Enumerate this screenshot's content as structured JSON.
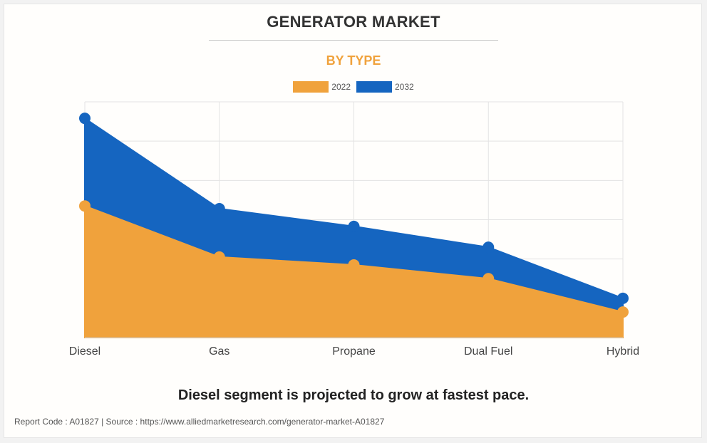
{
  "header": {
    "title": "GENERATOR MARKET",
    "subtitle": "BY TYPE"
  },
  "footer": {
    "headline": "Diesel segment is projected to grow at fastest pace.",
    "source": "Report Code : A01827  |  Source : https://www.alliedmarketresearch.com/generator-market-A01827"
  },
  "colors": {
    "2022": "#f0a23c",
    "2032": "#1565c0"
  },
  "chart_data": {
    "type": "area",
    "title": "GENERATOR MARKET",
    "subtitle": "BY TYPE",
    "categories": [
      "Diesel",
      "Gas",
      "Propane",
      "Dual Fuel",
      "Hybrid"
    ],
    "series": [
      {
        "name": "2022",
        "values": [
          33.5,
          20.5,
          18.5,
          15.0,
          6.5
        ]
      },
      {
        "name": "2032",
        "values": [
          55.8,
          32.8,
          28.3,
          23.0,
          10.0
        ]
      }
    ],
    "ylim": [
      0,
      60
    ],
    "y_tick_labels_shown": false,
    "grid": true,
    "legend_position": "top-center"
  }
}
